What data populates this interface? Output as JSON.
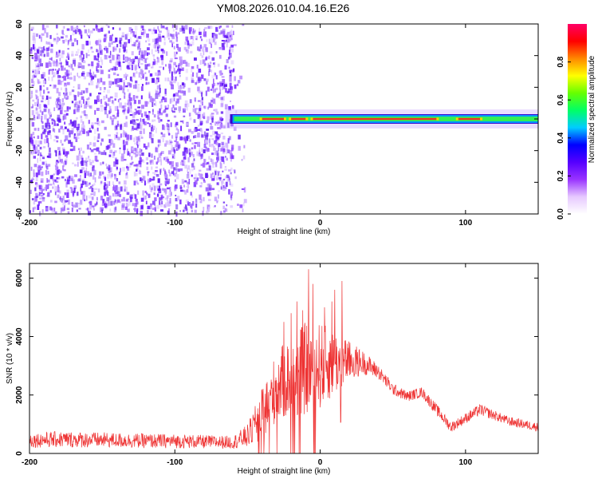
{
  "title": "YM08.2026.010.04.16.E26",
  "chart_data": [
    {
      "type": "heatmap",
      "name": "spectrogram",
      "xlabel": "Height of straight line (km)",
      "ylabel": "Frequency (Hz)",
      "xlim": [
        -200,
        150
      ],
      "ylim": [
        -60,
        60
      ],
      "xticks": [
        -200,
        -100,
        0,
        100
      ],
      "yticks": [
        -60,
        -40,
        -20,
        0,
        20,
        40,
        60
      ],
      "noise_region_x": [
        -200,
        -60
      ],
      "signal_band": {
        "x_start": -62,
        "x_end": 150,
        "center_freq_hz": 0,
        "halfwidth_hz": [
          3,
          1.5,
          2.5
        ],
        "peak_segments_x": [
          [
            -40,
            -25
          ],
          [
            -20,
            -10
          ],
          [
            -5,
            80
          ],
          [
            95,
            110
          ]
        ]
      },
      "colorbar": {
        "label": "Normalized spectral amplitude",
        "range": [
          0,
          1
        ],
        "ticks": [
          0.0,
          0.2,
          0.4,
          0.6,
          0.8
        ],
        "colors": [
          "#ffffff",
          "#e6c8ff",
          "#9933ff",
          "#5500ff",
          "#0000ff",
          "#00ccff",
          "#00ff66",
          "#66ff00",
          "#ffff00",
          "#ff8800",
          "#ff0000",
          "#ff0066"
        ]
      }
    },
    {
      "type": "line",
      "name": "snr",
      "xlabel": "Height of straight line (km)",
      "ylabel": "SNR (10 * v/v)",
      "xlim": [
        -200,
        150
      ],
      "ylim": [
        0,
        6500
      ],
      "xticks": [
        -200,
        -100,
        0,
        100
      ],
      "yticks": [
        0,
        2000,
        4000,
        6000
      ],
      "line_color": "#ee3333",
      "envelope": {
        "x": [
          -200,
          -180,
          -150,
          -120,
          -100,
          -80,
          -60,
          -50,
          -40,
          -30,
          -20,
          -10,
          0,
          10,
          20,
          30,
          40,
          50,
          60,
          70,
          80,
          90,
          100,
          110,
          120,
          130,
          150
        ],
        "base": [
          450,
          480,
          460,
          430,
          420,
          400,
          380,
          600,
          1300,
          2300,
          2600,
          2900,
          3000,
          3100,
          3150,
          3100,
          2800,
          2200,
          1950,
          2100,
          1500,
          900,
          1200,
          1500,
          1300,
          1100,
          900
        ],
        "amp": [
          250,
          280,
          260,
          250,
          240,
          230,
          220,
          400,
          900,
          1200,
          1400,
          1600,
          1500,
          1100,
          700,
          400,
          250,
          200,
          180,
          180,
          200,
          180,
          180,
          200,
          170,
          160,
          150
        ]
      },
      "spikes": [
        [
          -8,
          6300
        ],
        [
          -5,
          5800
        ],
        [
          -16,
          5200
        ],
        [
          -12,
          4900
        ],
        [
          15,
          5900
        ],
        [
          10,
          5600
        ],
        [
          -20,
          4800
        ],
        [
          3,
          5000
        ],
        [
          8,
          5200
        ],
        [
          -25,
          4500
        ]
      ]
    }
  ]
}
